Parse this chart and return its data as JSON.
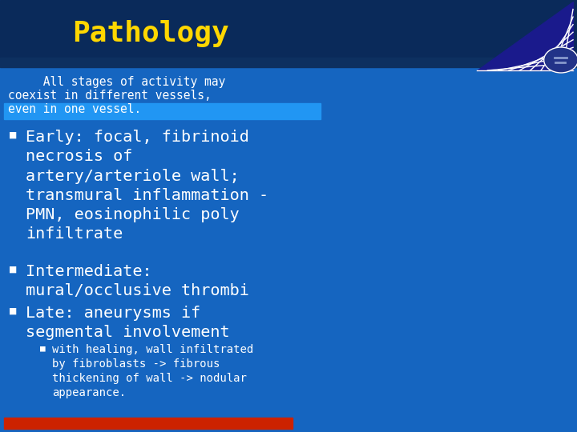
{
  "title": "Pathology",
  "title_color": "#FFD700",
  "title_fontsize": 26,
  "bg_color": "#1565C0",
  "header_bar_color": "#0A2A5A",
  "highlight_bar_color": "#2196F3",
  "bottom_bar_color": "#CC2200",
  "text_color": "#FFFFFF",
  "intro_text_line1": "     All stages of activity may",
  "intro_text_line2": "coexist in different vessels,",
  "intro_text_line3": "even in one vessel.",
  "bullet1": "Early: focal, fibrinoid\nnecrosis of\nartery/arteriole wall;\ntransmural inflammation -\nPMN, eosinophilic poly\ninfiltrate",
  "bullet2": "Intermediate:\nmural/occlusive thrombi",
  "bullet3": "Late: aneurysms if\nsegmental involvement",
  "sub_bullet": "with healing, wall infiltrated\nby fibroblasts -> fibrous\nthickening of wall -> nodular\nappearance.",
  "font_family": "monospace",
  "bullet_char": "■"
}
